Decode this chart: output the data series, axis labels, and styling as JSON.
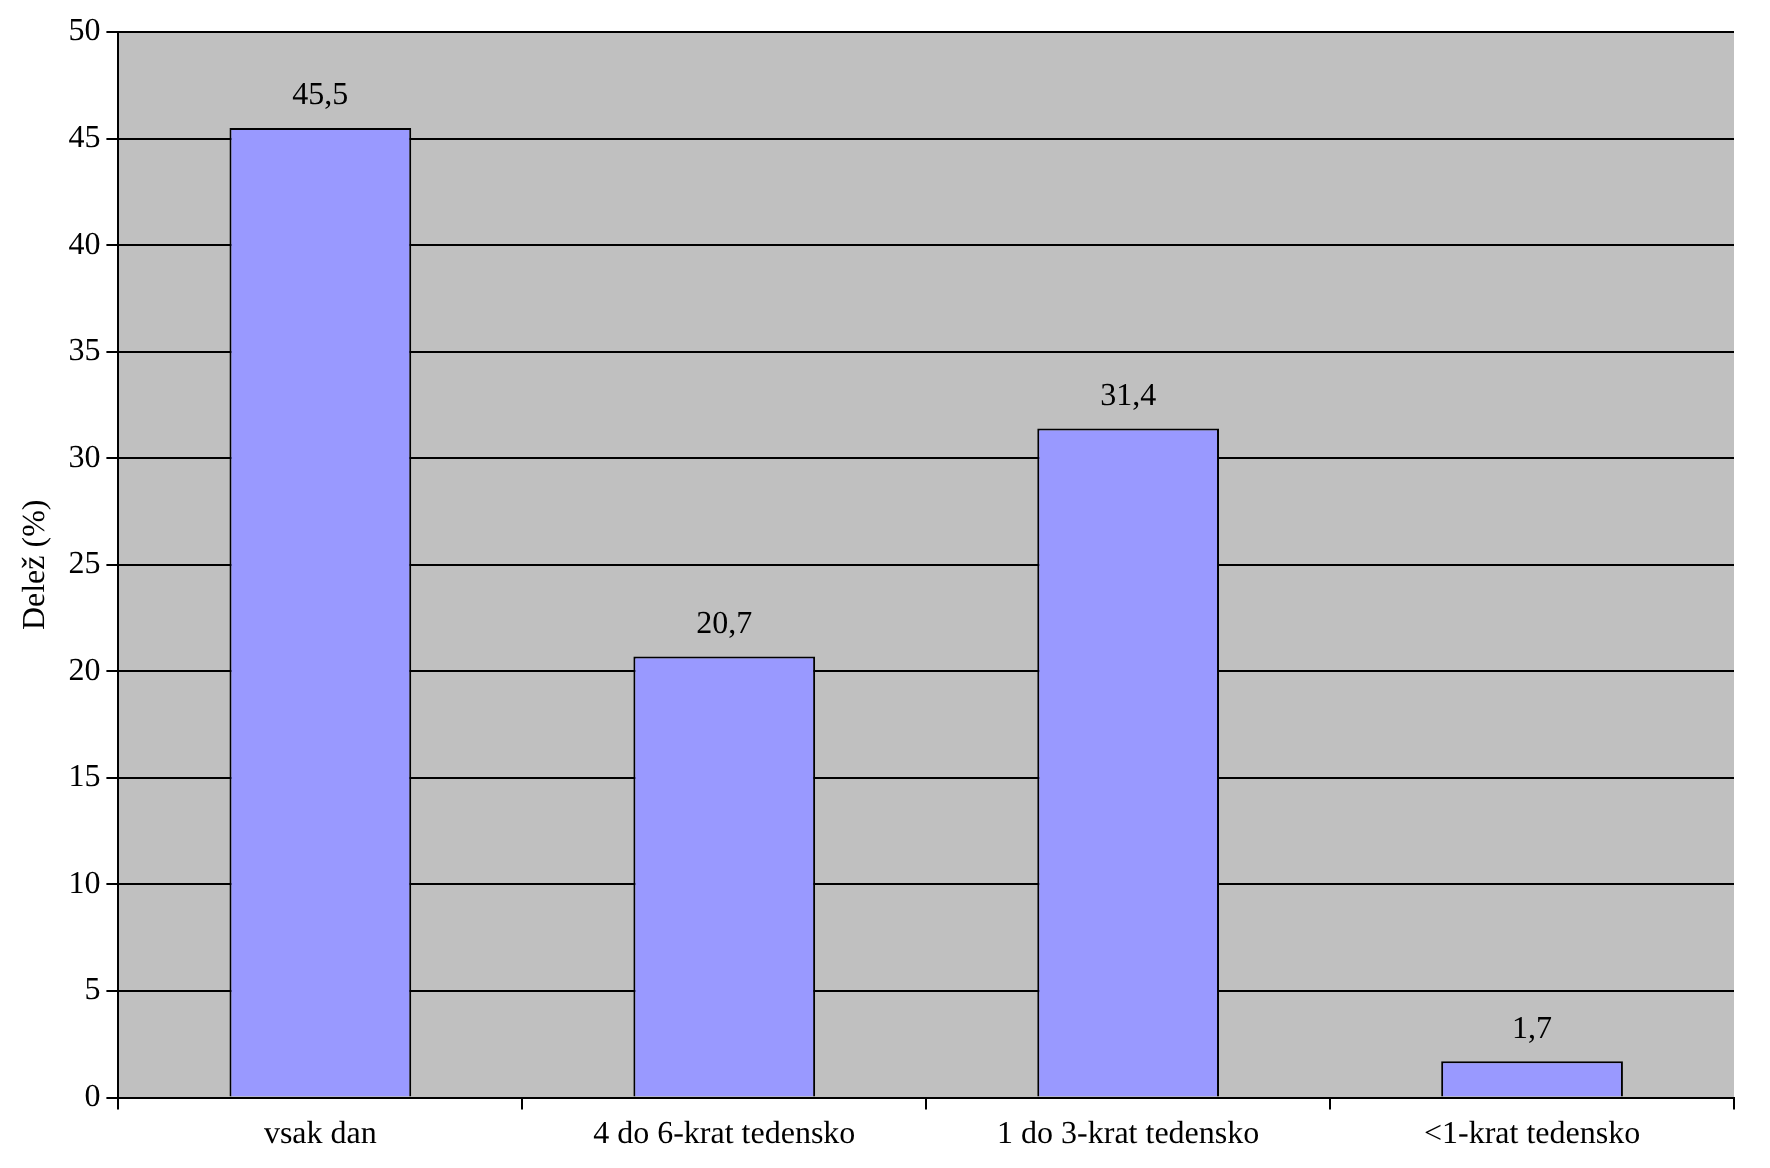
{
  "chart_data": {
    "type": "bar",
    "ylabel": "Delež (%)",
    "categories": [
      "vsak dan",
      "4 do 6-krat tedensko",
      "1 do 3-krat tedensko",
      "<1-krat tedensko"
    ],
    "values": [
      45.5,
      20.7,
      31.4,
      1.7
    ],
    "value_labels": [
      "45,5",
      "20,7",
      "31,4",
      "1,7"
    ],
    "color": "#9999ff",
    "ylim": [
      0,
      50
    ],
    "yticks": [
      0,
      5,
      10,
      15,
      20,
      25,
      30,
      35,
      40,
      45,
      50
    ],
    "grid": "y",
    "legend": false
  }
}
